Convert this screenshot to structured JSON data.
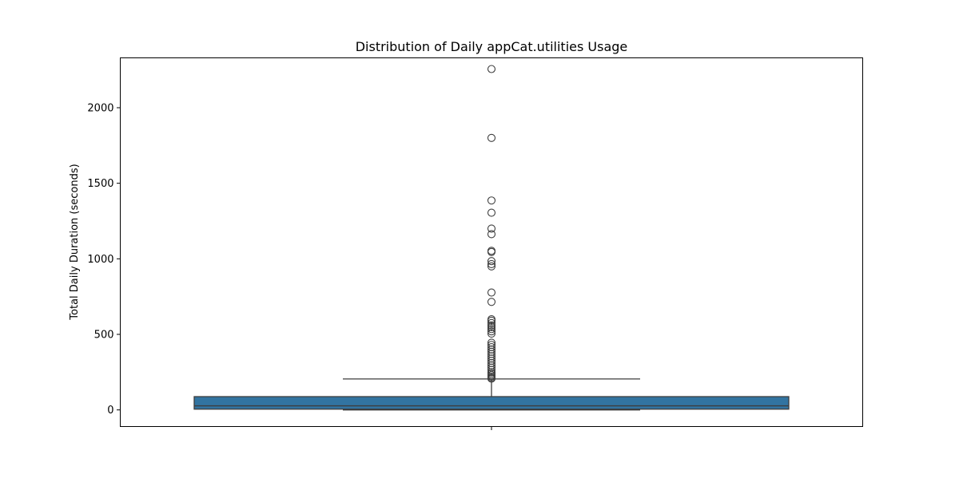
{
  "chart_data": {
    "type": "box",
    "title": "Distribution of Daily appCat.utilities Usage",
    "xlabel": "",
    "ylabel": "Total Daily Duration (seconds)",
    "ylim": [
      -110,
      2330
    ],
    "yticks": [
      0,
      500,
      1000,
      1500,
      2000
    ],
    "grid": false,
    "box": {
      "color": "#3274a1",
      "edge_color": "#3d3d3d",
      "whisker_low": 0,
      "q1": 5,
      "median": 27,
      "q3": 88,
      "whisker_high": 205
    },
    "outliers": [
      2256,
      1800,
      1386,
      1305,
      1200,
      1163,
      1053,
      1045,
      985,
      965,
      950,
      777,
      715,
      600,
      590,
      575,
      560,
      548,
      535,
      520,
      505,
      445,
      430,
      415,
      400,
      385,
      370,
      355,
      340,
      325,
      310,
      295,
      280,
      265,
      250,
      240,
      230,
      220,
      212,
      207
    ]
  }
}
